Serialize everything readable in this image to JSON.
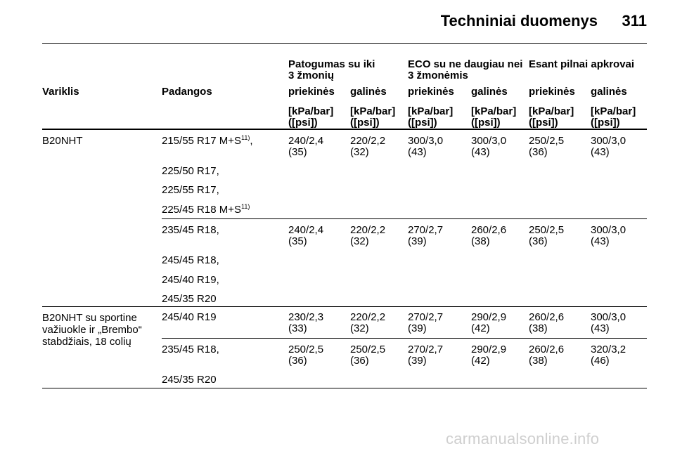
{
  "header": {
    "title": "Techniniai duomenys",
    "page_number": "311"
  },
  "table": {
    "group_headers": {
      "comfort_line1": "Patogumas su iki",
      "comfort_line2": "3 žmonių",
      "eco_line1": "ECO su ne daugiau nei",
      "eco_line2": "3 žmonėmis",
      "full_load": "Esant pilnai apkrovai"
    },
    "col_headers": {
      "engine": "Variklis",
      "tyres": "Padangos",
      "front1": "priekinės",
      "rear1": "galinės",
      "front2": "priekinės",
      "rear2": "galinės",
      "front3": "priekinės",
      "rear3": "galinės"
    },
    "unit_line1": "[kPa/bar]",
    "unit_line2": "([psi])",
    "row1": {
      "engine": "B20NHT",
      "tyre1": "215/55 R17 M+S",
      "tyre1_sup": "11)",
      "tyre1_suffix": ",",
      "tyre2": "225/50 R17,",
      "tyre3": "225/55 R17,",
      "tyre4": "225/45 R18 M+S",
      "tyre4_sup": "11)",
      "values": [
        {
          "a": "240/2,4",
          "b": "(35)"
        },
        {
          "a": "220/2,2",
          "b": "(32)"
        },
        {
          "a": "300/3,0",
          "b": "(43)"
        },
        {
          "a": "300/3,0",
          "b": "(43)"
        },
        {
          "a": "250/2,5",
          "b": "(36)"
        },
        {
          "a": "300/3,0",
          "b": "(43)"
        }
      ]
    },
    "row2": {
      "tyre1": "235/45 R18,",
      "tyre2": "245/45 R18,",
      "tyre3": "245/40 R19,",
      "tyre4": "245/35 R20",
      "values": [
        {
          "a": "240/2,4",
          "b": "(35)"
        },
        {
          "a": "220/2,2",
          "b": "(32)"
        },
        {
          "a": "270/2,7",
          "b": "(39)"
        },
        {
          "a": "260/2,6",
          "b": "(38)"
        },
        {
          "a": "250/2,5",
          "b": "(36)"
        },
        {
          "a": "300/3,0",
          "b": "(43)"
        }
      ]
    },
    "row3": {
      "engine_line1": "B20NHT su sportine",
      "engine_line2": "važiuokle ir „Brembo“",
      "engine_line3": "stabdžiais, 18 colių",
      "tyre1": "245/40 R19",
      "values": [
        {
          "a": "230/2,3",
          "b": "(33)"
        },
        {
          "a": "220/2,2",
          "b": "(32)"
        },
        {
          "a": "270/2,7",
          "b": "(39)"
        },
        {
          "a": "290/2,9",
          "b": "(42)"
        },
        {
          "a": "260/2,6",
          "b": "(38)"
        },
        {
          "a": "300/3,0",
          "b": "(43)"
        }
      ]
    },
    "row4": {
      "tyre1": "235/45 R18,",
      "tyre2": "245/35 R20",
      "values": [
        {
          "a": "250/2,5",
          "b": "(36)"
        },
        {
          "a": "250/2,5",
          "b": "(36)"
        },
        {
          "a": "270/2,7",
          "b": "(39)"
        },
        {
          "a": "290/2,9",
          "b": "(42)"
        },
        {
          "a": "260/2,6",
          "b": "(38)"
        },
        {
          "a": "320/3,2",
          "b": "(46)"
        }
      ]
    }
  },
  "watermark": "carmanualsonline.info"
}
